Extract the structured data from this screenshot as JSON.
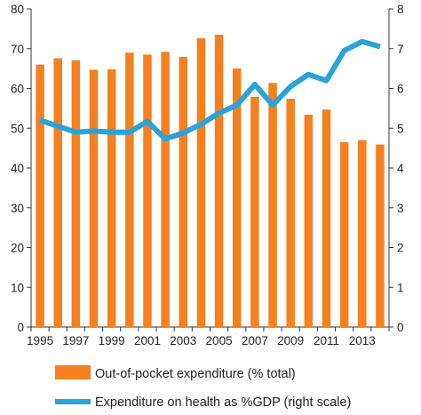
{
  "chart_data": {
    "type": "bar",
    "x": [
      1995,
      1996,
      1997,
      1998,
      1999,
      2000,
      2001,
      2002,
      2003,
      2004,
      2005,
      2006,
      2007,
      2008,
      2009,
      2010,
      2011,
      2012,
      2013,
      2014
    ],
    "x_tick_labels": [
      "1995",
      "1997",
      "1999",
      "2001",
      "2003",
      "2005",
      "2007",
      "2009",
      "2011",
      "2013"
    ],
    "series": [
      {
        "name": "Out-of-pocket expenditure (% total)",
        "type": "bar",
        "axis": "left",
        "color": "#f5801f",
        "values": [
          66.0,
          67.6,
          67.1,
          64.7,
          64.8,
          69.0,
          68.5,
          69.2,
          67.9,
          72.6,
          73.5,
          65.0,
          57.9,
          61.4,
          57.4,
          53.4,
          54.7,
          46.5,
          47.0,
          45.9
        ]
      },
      {
        "name": "Expenditure on health as %GDP (right scale)",
        "type": "line",
        "axis": "right",
        "color": "#2aa3dc",
        "values": [
          5.2,
          5.05,
          4.9,
          4.93,
          4.9,
          4.9,
          5.17,
          4.73,
          4.88,
          5.1,
          5.38,
          5.58,
          6.1,
          5.58,
          6.05,
          6.35,
          6.2,
          6.95,
          7.18,
          7.05
        ]
      }
    ],
    "y_left": {
      "min": 0,
      "max": 80,
      "ticks": [
        "0",
        "10",
        "20",
        "30",
        "40",
        "50",
        "60",
        "70",
        "80"
      ]
    },
    "y_right": {
      "min": 0,
      "max": 8,
      "ticks": [
        "0",
        "1",
        "2",
        "3",
        "4",
        "5",
        "6",
        "7",
        "8"
      ]
    },
    "title": "",
    "xlabel": "",
    "ylabel": "",
    "grid": false,
    "legend_position": "bottom",
    "legend": [
      {
        "label": "Out-of-pocket expenditure (% total)",
        "color": "#f5801f",
        "kind": "bar"
      },
      {
        "label": "Expenditure on health as %GDP (right scale)",
        "color": "#2aa3dc",
        "kind": "line"
      }
    ]
  }
}
